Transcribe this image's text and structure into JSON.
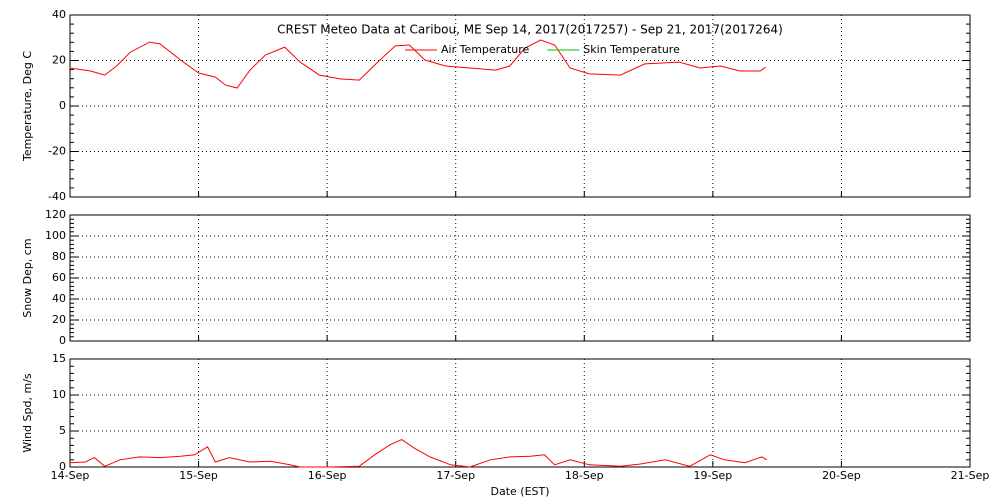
{
  "chart_data": [
    {
      "type": "line",
      "title": "CREST Meteo Data at Caribou, ME   Sep 14, 2017(2017257) - Sep 21, 2017(2017264)",
      "ylabel": "Temperature, Deg C",
      "xlim": [
        257,
        264
      ],
      "xticks": [
        257,
        258,
        259,
        260,
        261,
        262,
        263,
        264
      ],
      "ylim": [
        -40,
        40
      ],
      "yticks": [
        -40,
        -20,
        0,
        20,
        40
      ],
      "grid": true,
      "legend": "top",
      "series": [
        {
          "name": "Air Temperature",
          "color": "#ff0000",
          "x": [
            257.0,
            257.16,
            257.27,
            257.37,
            257.47,
            257.62,
            257.7,
            257.86,
            258.0,
            258.13,
            258.21,
            258.3,
            258.4,
            258.52,
            258.67,
            258.79,
            258.94,
            259.1,
            259.25,
            259.41,
            259.53,
            259.64,
            259.76,
            259.92,
            260.11,
            260.31,
            260.42,
            260.54,
            260.66,
            260.77,
            260.89,
            261.04,
            261.28,
            261.47,
            261.74,
            261.9,
            262.06,
            262.21,
            262.37,
            262.41
          ],
          "values": [
            16.7,
            15.4,
            13.6,
            18,
            23.7,
            28.1,
            27.3,
            20.2,
            14.5,
            12.7,
            9.2,
            7.9,
            15.8,
            22.4,
            25.9,
            19.3,
            13.6,
            11.9,
            11.4,
            20.2,
            26.4,
            26.8,
            20.2,
            17.6,
            16.7,
            15.8,
            17.6,
            25.5,
            29,
            26.8,
            16.7,
            14.1,
            13.6,
            18.5,
            19.3,
            16.7,
            17.6,
            15.4,
            15.4,
            17.1
          ]
        },
        {
          "name": "Skin Temperature",
          "color": "#00c000",
          "x": [],
          "values": []
        }
      ]
    },
    {
      "type": "line",
      "ylabel": "Snow Dep, cm",
      "xlim": [
        257,
        264
      ],
      "xticks": [
        257,
        258,
        259,
        260,
        261,
        262,
        263,
        264
      ],
      "ylim": [
        0,
        120
      ],
      "yticks": [
        0,
        20,
        40,
        60,
        80,
        100,
        120
      ],
      "grid": true,
      "series": []
    },
    {
      "type": "line",
      "ylabel": "Wind Spd, m/s",
      "xlabel": "Date (EST)",
      "xlim": [
        257,
        264
      ],
      "xticks": [
        {
          "value": 257,
          "label": "14-Sep"
        },
        {
          "value": 258,
          "label": "15-Sep"
        },
        {
          "value": 259,
          "label": "16-Sep"
        },
        {
          "value": 260,
          "label": "17-Sep"
        },
        {
          "value": 261,
          "label": "18-Sep"
        },
        {
          "value": 262,
          "label": "19-Sep"
        },
        {
          "value": 263,
          "label": "20-Sep"
        },
        {
          "value": 264,
          "label": "21-Sep"
        }
      ],
      "ylim": [
        0,
        15
      ],
      "yticks": [
        0,
        5,
        10,
        15
      ],
      "grid": true,
      "series": [
        {
          "name": "Wind Speed",
          "color": "#ff0000",
          "x": [
            257.0,
            257.12,
            257.19,
            257.27,
            257.39,
            257.54,
            257.7,
            257.86,
            257.97,
            258.07,
            258.13,
            258.24,
            258.4,
            258.56,
            258.71,
            258.79,
            259.02,
            259.25,
            259.37,
            259.49,
            259.58,
            259.68,
            259.8,
            259.96,
            260.11,
            260.27,
            260.42,
            260.58,
            260.69,
            260.77,
            260.89,
            261.04,
            261.28,
            261.43,
            261.63,
            261.82,
            261.98,
            262.09,
            262.25,
            262.38,
            262.42
          ],
          "values": [
            0.6,
            0.7,
            1.3,
            0.1,
            1.0,
            1.4,
            1.3,
            1.5,
            1.7,
            2.8,
            0.7,
            1.3,
            0.7,
            0.8,
            0.3,
            0,
            0,
            0.1,
            1.7,
            3.1,
            3.8,
            2.6,
            1.4,
            0.3,
            0,
            1.0,
            1.4,
            1.5,
            1.7,
            0.3,
            1.0,
            0.3,
            0.1,
            0.4,
            1.0,
            0.1,
            1.7,
            1.0,
            0.6,
            1.4,
            1.0
          ]
        }
      ]
    }
  ]
}
